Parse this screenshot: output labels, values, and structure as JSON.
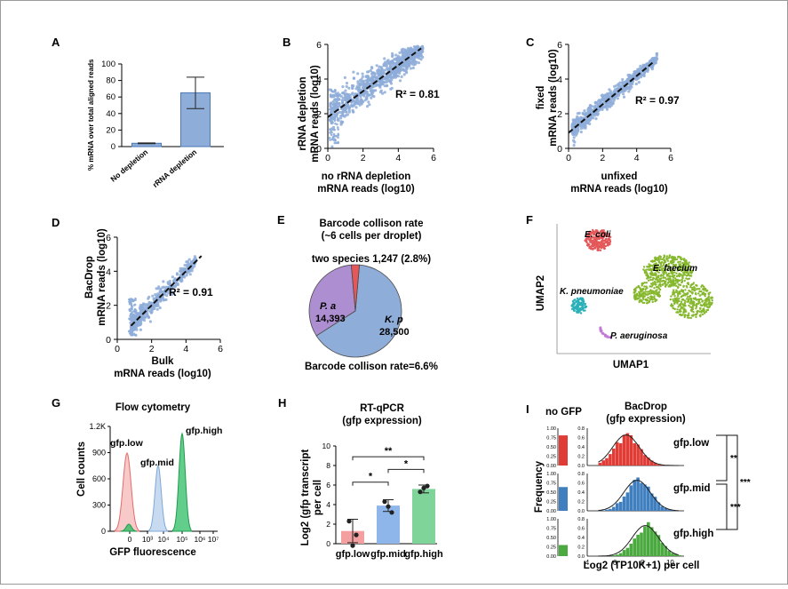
{
  "colors": {
    "blue": "#8EADD9",
    "blue_dark": "#4A78B5",
    "red": "#E4585A",
    "purple": "#AD8ED0",
    "green": "#86B82E",
    "teal": "#2BB0B8",
    "pink": "#F19C9A",
    "lightblue": "#AFCBEA",
    "flowgreen": "#2FBE64",
    "panel_i_red": "#E13B36",
    "panel_i_blue": "#3F7FC0",
    "panel_i_green": "#4BAA3F",
    "hbar_blue": "#8EB6EA",
    "hbar_green": "#7FD49A",
    "hbar_red": "#F4A0A0"
  },
  "panels": {
    "A": {
      "letter": "A",
      "ylabel": "% mRNA over total aligned reads",
      "ticks": [
        "0",
        "20",
        "40",
        "60",
        "80",
        "100"
      ]
    },
    "B": {
      "letter": "B",
      "ylabel": [
        "rRNA depletion",
        "mRNA reads (log10)"
      ],
      "xlabel": [
        "no rRNA depletion",
        "mRNA reads (log10)"
      ],
      "r2": "R² = 0.81",
      "xticks": [
        "0",
        "2",
        "4",
        "6"
      ],
      "yticks": [
        "0",
        "2",
        "4",
        "6"
      ]
    },
    "C": {
      "letter": "C",
      "ylabel": [
        "fixed",
        "mRNA reads (log10)"
      ],
      "xlabel": [
        "unfixed",
        "mRNA reads (log10)"
      ],
      "r2": "R² = 0.97",
      "xticks": [
        "0",
        "2",
        "4",
        "6"
      ],
      "yticks": [
        "0",
        "2",
        "4",
        "6"
      ]
    },
    "D": {
      "letter": "D",
      "ylabel": [
        "BacDrop",
        "mRNA reads (log10)"
      ],
      "xlabel": [
        "Bulk",
        "mRNA reads (log10)"
      ],
      "r2": "R² = 0.91",
      "xticks": [
        "0",
        "2",
        "4",
        "6"
      ],
      "yticks": [
        "0",
        "2",
        "4",
        "6"
      ]
    },
    "E": {
      "letter": "E",
      "title": [
        "Barcode collison rate",
        "(~6 cells per droplet)"
      ],
      "two_species": "two species 1,247 (2.8%)",
      "footer": "Barcode collison rate=6.6%"
    },
    "F": {
      "letter": "F",
      "xlabel": "UMAP1",
      "ylabel": "UMAP2",
      "labels": {
        "ecoli": "E. coli",
        "efaecium": "E. faecium",
        "kpneu": "K. pneumoniae",
        "paer": "P. aeruginosa"
      }
    },
    "G": {
      "letter": "G",
      "title": "Flow cytometry",
      "ylabel": "Cell counts",
      "xlabel": "GFP fluorescence",
      "yticks": [
        "0",
        "300",
        "600",
        "900",
        "1.2K"
      ],
      "xticks": [
        "0",
        "10³",
        "10⁴",
        "10⁵",
        "10⁶",
        "10⁷"
      ],
      "labels": {
        "low": "gfp.low",
        "mid": "gfp.mid",
        "high": "gfp.high"
      }
    },
    "H": {
      "letter": "H",
      "title": [
        "RT-qPCR",
        "(gfp expression)"
      ],
      "ylabel": [
        "Log2 (gfp transcript",
        "per cell"
      ],
      "yticks": [
        "0",
        "2",
        "4",
        "6",
        "8",
        "10"
      ],
      "sig": [
        "*",
        "*",
        "**"
      ]
    },
    "I": {
      "letter": "I",
      "nogfp": "no GFP",
      "title": [
        "BacDrop",
        "(gfp expression)"
      ],
      "ylabel": "Frequency",
      "xlabel": "Log2 (TP10K+1) per cell",
      "xticks": [
        "4",
        "6",
        "8",
        "10"
      ],
      "yticks_small": [
        "0.00",
        "0.25",
        "0.50",
        "0.75",
        "1.00"
      ],
      "yticks_big": [
        "0.0",
        "0.2",
        "0.4",
        "0.6",
        "0.8"
      ],
      "rows": [
        "gfp.low",
        "gfp.mid",
        "gfp.high"
      ],
      "sig": [
        "**",
        "***",
        "***"
      ]
    }
  },
  "chart_data": [
    {
      "panel": "A",
      "type": "bar",
      "categories": [
        "No depletion",
        "rRNA depletion"
      ],
      "values": [
        4,
        65
      ],
      "errors": [
        [
          3.5,
          4.5
        ],
        [
          46,
          84
        ]
      ],
      "ylabel": "% mRNA over total aligned reads",
      "ylim": [
        0,
        100
      ]
    },
    {
      "panel": "B",
      "type": "scatter",
      "xlabel": "no rRNA depletion mRNA reads (log10)",
      "ylabel": "rRNA depletion mRNA reads (log10)",
      "xlim": [
        0,
        6
      ],
      "ylim": [
        0,
        6
      ],
      "r_squared": 0.81,
      "fit": {
        "slope": 0.75,
        "intercept": 1.8
      }
    },
    {
      "panel": "C",
      "type": "scatter",
      "xlabel": "unfixed mRNA reads (log10)",
      "ylabel": "fixed mRNA reads (log10)",
      "xlim": [
        0,
        6
      ],
      "ylim": [
        0,
        6
      ],
      "r_squared": 0.97,
      "fit": {
        "slope": 0.82,
        "intercept": 0.9
      }
    },
    {
      "panel": "D",
      "type": "scatter",
      "xlabel": "Bulk mRNA reads (log10)",
      "ylabel": "BacDrop mRNA reads (log10)",
      "xlim": [
        0,
        6
      ],
      "ylim": [
        0,
        6
      ],
      "r_squared": 0.91,
      "fit": {
        "slope": 1.0,
        "intercept": 0.0
      }
    },
    {
      "panel": "E",
      "type": "pie",
      "labels": [
        "K. p",
        "P. a",
        "two species"
      ],
      "values": [
        28500,
        14393,
        1247
      ],
      "display": [
        "28,500",
        "14,393",
        "1,247 (2.8%)"
      ]
    },
    {
      "panel": "F",
      "type": "scatter",
      "xlabel": "UMAP1",
      "ylabel": "UMAP2",
      "series": [
        {
          "name": "E. coli"
        },
        {
          "name": "E. faecium"
        },
        {
          "name": "K. pneumoniae"
        },
        {
          "name": "P. aeruginosa"
        }
      ]
    },
    {
      "panel": "G",
      "type": "area",
      "xlabel": "GFP fluorescence",
      "ylabel": "Cell counts",
      "ylim": [
        0,
        1200
      ],
      "series": [
        {
          "name": "gfp.low",
          "peak_x": "10^0",
          "peak_y": 900
        },
        {
          "name": "gfp.mid",
          "peak_x": "10^4",
          "peak_y": 750
        },
        {
          "name": "gfp.high",
          "peak_x": "10^5",
          "peak_y": 1150
        }
      ]
    },
    {
      "panel": "H",
      "type": "bar",
      "categories": [
        "gfp.low",
        "gfp.mid",
        "gfp.high"
      ],
      "values": [
        1.3,
        3.9,
        5.6
      ],
      "errors": [
        1.2,
        0.6,
        0.4
      ],
      "points": [
        [
          2.3,
          -0.2,
          0.9
        ],
        [
          4.3,
          3.8,
          3.2
        ],
        [
          5.3,
          5.7,
          5.9
        ]
      ],
      "ylim": [
        0,
        10
      ]
    },
    {
      "panel": "I",
      "type": "bar",
      "categories": [
        "gfp.low",
        "gfp.mid",
        "gfp.high"
      ],
      "peaks": [
        6.8,
        7.6,
        8.2
      ],
      "xlabel": "Log2 (TP10K+1) per cell",
      "ylabel": "Frequency"
    }
  ]
}
